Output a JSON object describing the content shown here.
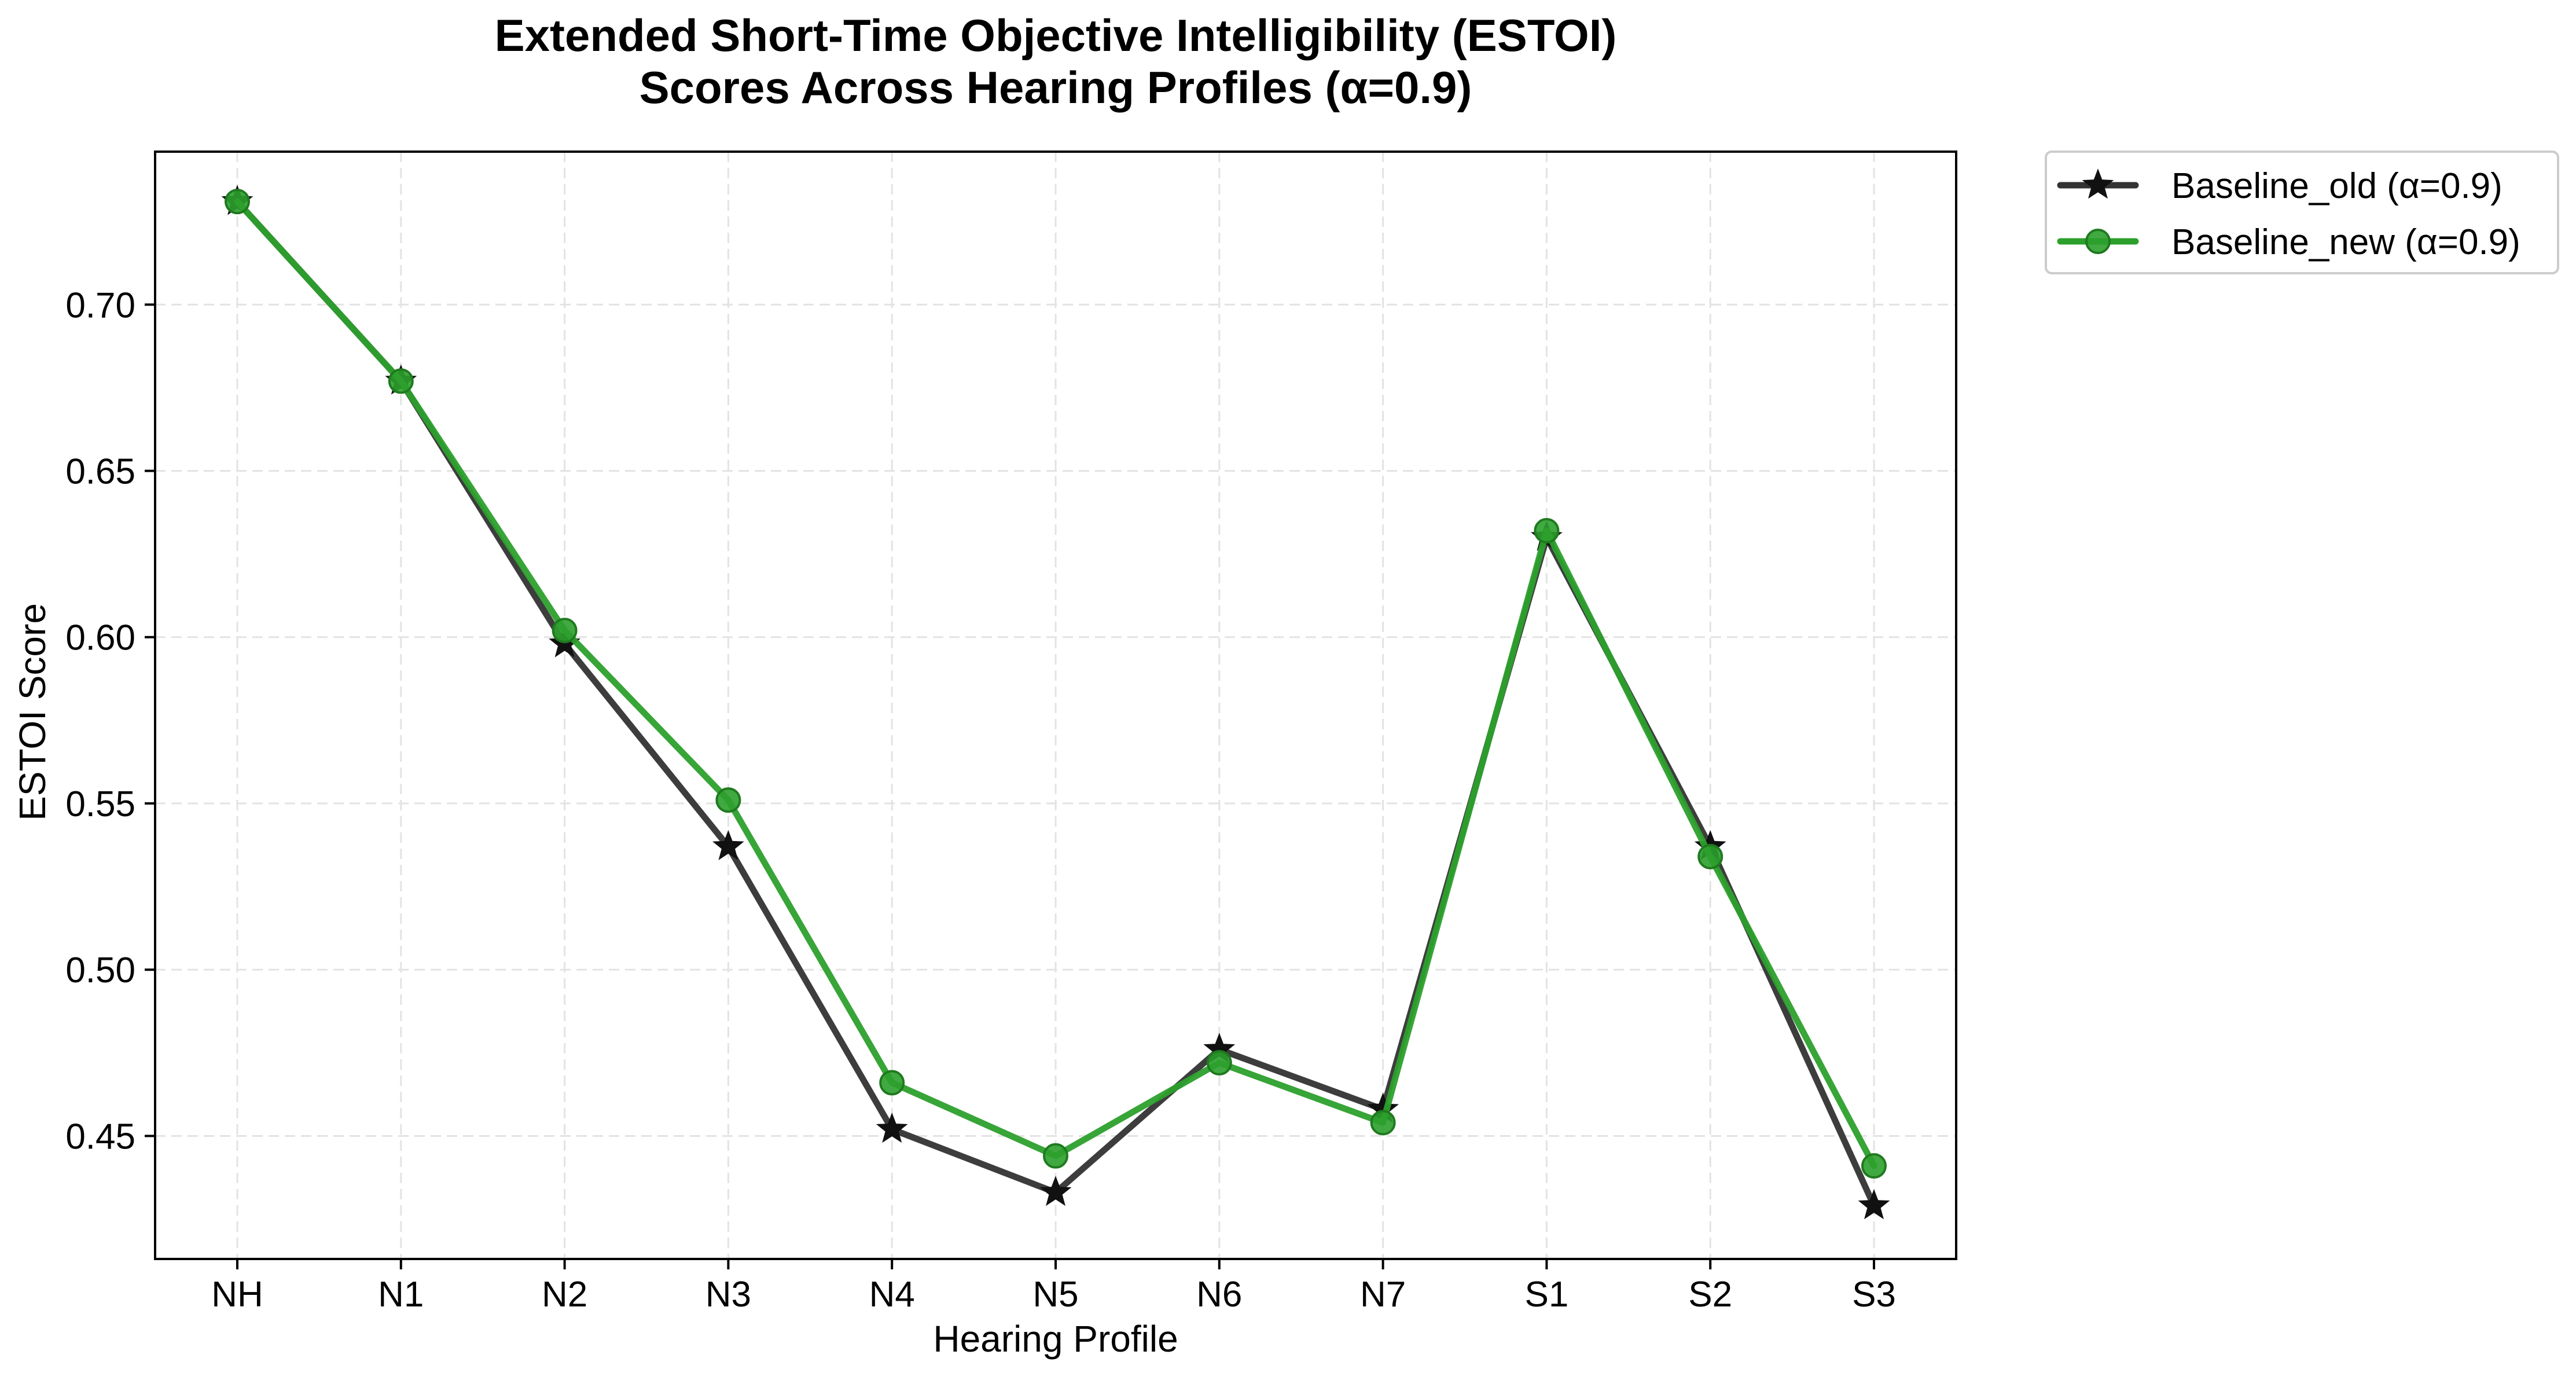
{
  "chart_data": {
    "type": "line",
    "title_line1": "Extended Short-Time Objective Intelligibility (ESTOI)",
    "title_line2": "Scores Across Hearing Profiles (α=0.9)",
    "xlabel": "Hearing Profile",
    "ylabel": "ESTOI Score",
    "categories": [
      "NH",
      "N1",
      "N2",
      "N3",
      "N4",
      "N5",
      "N6",
      "N7",
      "S1",
      "S2",
      "S3"
    ],
    "yticks": [
      0.45,
      0.5,
      0.55,
      0.6,
      0.65,
      0.7
    ],
    "ytick_labels": [
      "0.45",
      "0.50",
      "0.55",
      "0.60",
      "0.65",
      "0.70"
    ],
    "ylim": [
      0.413,
      0.746
    ],
    "grid": true,
    "legend_position": "outside-top-right",
    "series": [
      {
        "name": "Baseline_old (α=0.9)",
        "color": "#333333",
        "marker": "star",
        "values": [
          0.731,
          0.677,
          0.598,
          0.537,
          0.452,
          0.433,
          0.476,
          0.458,
          0.63,
          0.537,
          0.429
        ]
      },
      {
        "name": "Baseline_new (α=0.9)",
        "color": "#2ca02c",
        "marker": "circle",
        "values": [
          0.731,
          0.677,
          0.602,
          0.551,
          0.466,
          0.444,
          0.472,
          0.454,
          0.632,
          0.534,
          0.441
        ]
      }
    ]
  }
}
